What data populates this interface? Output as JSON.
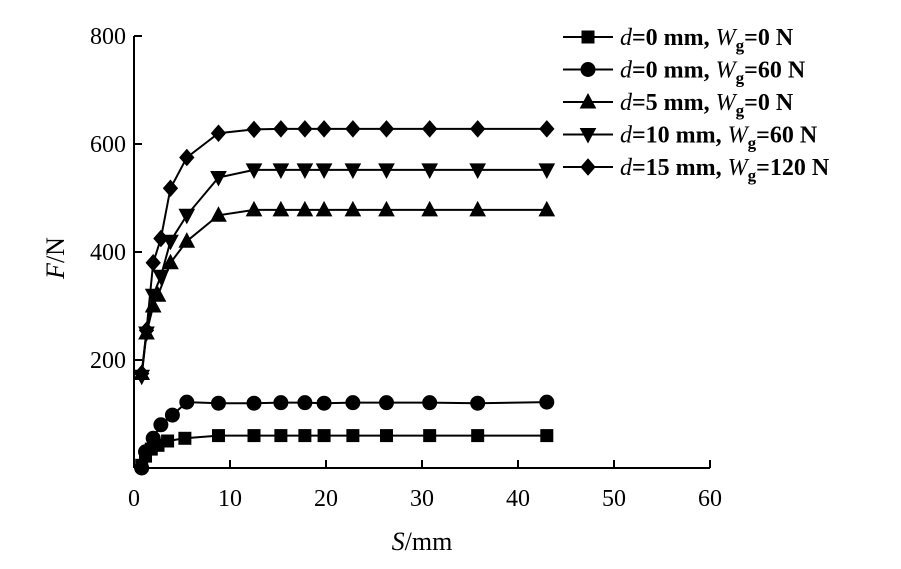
{
  "chart_data": {
    "type": "line",
    "xlabel": {
      "var": "S",
      "unit": "/mm"
    },
    "ylabel": {
      "var": "F",
      "unit": "/N"
    },
    "xlim": [
      0,
      60
    ],
    "ylim": [
      0,
      800
    ],
    "xticks": [
      0,
      10,
      20,
      30,
      40,
      50,
      60
    ],
    "yticks": [
      200,
      400,
      600,
      800
    ],
    "grid": false,
    "legend_position": "top-right",
    "series": [
      {
        "name": "d=0 mm, Wg=0 N",
        "legend": {
          "v1": "d",
          "p1": "=0 mm, ",
          "v2": "W",
          "sub": "g",
          "p2": "=0 N"
        },
        "marker": "square",
        "x": [
          0.8,
          1.2,
          1.8,
          2.5,
          3.5,
          5.3,
          8.8,
          12.5,
          15.3,
          17.8,
          19.8,
          22.8,
          26.3,
          30.8,
          35.8,
          43.0
        ],
        "y": [
          5,
          22,
          35,
          42,
          50,
          55,
          60,
          60,
          60,
          60,
          60,
          60,
          60,
          60,
          60,
          60
        ]
      },
      {
        "name": "d=0 mm, Wg=60 N",
        "legend": {
          "v1": "d",
          "p1": "=0 mm, ",
          "v2": "W",
          "sub": "g",
          "p2": "=60 N"
        },
        "marker": "circle",
        "x": [
          0.8,
          1.2,
          2.0,
          2.8,
          4.0,
          5.5,
          8.8,
          12.5,
          15.3,
          17.8,
          19.8,
          22.8,
          26.3,
          30.8,
          35.8,
          43.0
        ],
        "y": [
          0,
          30,
          55,
          80,
          98,
          122,
          120,
          120,
          121,
          121,
          120,
          121,
          121,
          121,
          120,
          122
        ]
      },
      {
        "name": "d=5 mm, Wg=0 N",
        "legend": {
          "v1": "d",
          "p1": "=5 mm, ",
          "v2": "W",
          "sub": "g",
          "p2": "=0 N"
        },
        "marker": "triangle-up",
        "x": [
          0.8,
          1.3,
          2.0,
          2.5,
          3.8,
          5.5,
          8.8,
          12.5,
          15.3,
          17.8,
          19.8,
          22.8,
          26.3,
          30.8,
          35.8,
          43.0
        ],
        "y": [
          175,
          250,
          300,
          320,
          380,
          420,
          468,
          478,
          478,
          478,
          478,
          478,
          478,
          478,
          478,
          478
        ]
      },
      {
        "name": "d=10 mm, Wg=60 N",
        "legend": {
          "v1": "d",
          "p1": "=10 mm, ",
          "v2": "W",
          "sub": "g",
          "p2": "=60 N"
        },
        "marker": "triangle-down",
        "x": [
          0.8,
          1.3,
          2.0,
          2.8,
          3.8,
          5.5,
          8.8,
          12.5,
          15.3,
          17.8,
          19.8,
          22.8,
          26.3,
          30.8,
          35.8,
          43.0
        ],
        "y": [
          170,
          250,
          320,
          355,
          420,
          468,
          538,
          552,
          552,
          552,
          552,
          552,
          552,
          552,
          552,
          552
        ]
      },
      {
        "name": "d=15 mm, Wg=120 N",
        "legend": {
          "v1": "d",
          "p1": "=15 mm, ",
          "v2": "W",
          "sub": "g",
          "p2": "=120 N"
        },
        "marker": "diamond",
        "x": [
          0.8,
          1.3,
          2.0,
          2.8,
          3.8,
          5.5,
          8.8,
          12.5,
          15.3,
          17.8,
          19.8,
          22.8,
          26.3,
          30.8,
          35.8,
          43.0
        ],
        "y": [
          175,
          255,
          380,
          425,
          518,
          575,
          620,
          627,
          628,
          628,
          628,
          628,
          628,
          628,
          628,
          628
        ]
      }
    ]
  }
}
